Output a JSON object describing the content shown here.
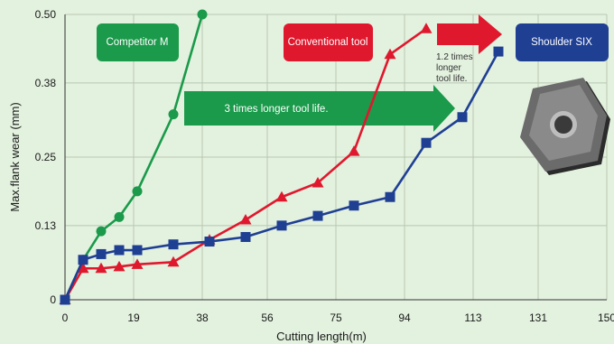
{
  "chart_data": {
    "type": "line",
    "xlabel": "Cutting length(m)",
    "ylabel": "Max.flank wear (mm)",
    "x_ticks": [
      "0",
      "19",
      "38",
      "56",
      "75",
      "94",
      "113",
      "131",
      "150"
    ],
    "y_ticks": [
      "0",
      "0.13",
      "0.25",
      "0.38",
      "0.50"
    ],
    "xlim": [
      0,
      150
    ],
    "ylim": [
      0,
      0.5
    ],
    "grid": true,
    "series": [
      {
        "name": "Competitor M",
        "color": "#1a9a4a",
        "marker": "circle",
        "x": [
          0,
          5,
          10,
          15,
          20,
          30,
          38
        ],
        "y": [
          0,
          0.07,
          0.12,
          0.145,
          0.19,
          0.325,
          0.5
        ]
      },
      {
        "name": "Conventional tool",
        "color": "#e0182d",
        "marker": "triangle",
        "x": [
          0,
          5,
          10,
          15,
          20,
          30,
          40,
          50,
          60,
          70,
          80,
          90,
          100
        ],
        "y": [
          0,
          0.055,
          0.055,
          0.058,
          0.062,
          0.066,
          0.105,
          0.14,
          0.18,
          0.205,
          0.26,
          0.43,
          0.475
        ]
      },
      {
        "name": "Shoulder SIX",
        "color": "#1f3f93",
        "marker": "square",
        "x": [
          0,
          5,
          10,
          15,
          20,
          30,
          40,
          50,
          60,
          70,
          80,
          90,
          100,
          110,
          120
        ],
        "y": [
          0,
          0.07,
          0.08,
          0.087,
          0.087,
          0.097,
          0.102,
          0.11,
          0.13,
          0.147,
          0.165,
          0.18,
          0.275,
          0.32,
          0.435
        ]
      }
    ],
    "annotations": [
      {
        "text": "3 times longer tool life.",
        "color": "#1a9a4a"
      },
      {
        "text_lines": [
          "1.2 times",
          "longer",
          "tool life."
        ],
        "color": "#e0182d"
      }
    ]
  }
}
